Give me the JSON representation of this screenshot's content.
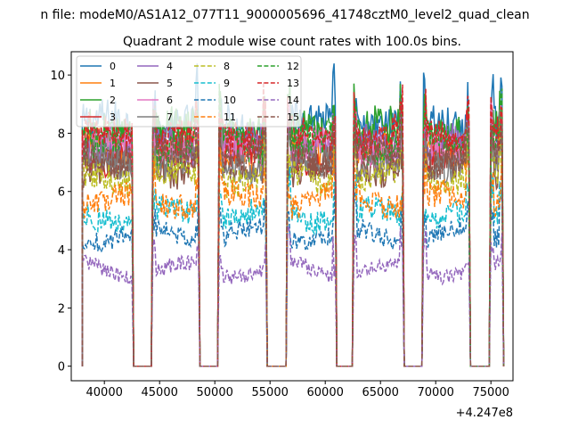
{
  "suptitle": "n file: modeM0/AS1A12_077T11_9000005696_41748cztM0_level2_quad_clean",
  "chart_data": {
    "type": "line",
    "title": "Quadrant 2 module wise count rates with 100.0s bins.",
    "xlabel": "",
    "ylabel": "",
    "x_offset_label": "+4.247e8",
    "xlim": [
      37000,
      77000
    ],
    "ylim": [
      -0.5,
      10.8
    ],
    "xticks": [
      40000,
      45000,
      50000,
      55000,
      60000,
      65000,
      70000,
      75000
    ],
    "xtick_labels": [
      "40000",
      "45000",
      "50000",
      "55000",
      "60000",
      "65000",
      "70000",
      "75000"
    ],
    "yticks": [
      0,
      2,
      4,
      6,
      8,
      10
    ],
    "ytick_labels": [
      "0",
      "2",
      "4",
      "6",
      "8",
      "10"
    ],
    "grid": false,
    "legend_placement": "top-left",
    "legend_columns": 4,
    "on_intervals": [
      [
        38000,
        42500
      ],
      [
        44400,
        48500
      ],
      [
        50400,
        54600
      ],
      [
        56600,
        60900
      ],
      [
        62600,
        67000
      ],
      [
        68900,
        73000
      ],
      [
        75000,
        76000
      ]
    ],
    "gap_level": 0,
    "series": [
      {
        "name": "0",
        "color": "#1f77b4",
        "style": "solid",
        "level": 8.3
      },
      {
        "name": "1",
        "color": "#ff7f0e",
        "style": "solid",
        "level": 7.4
      },
      {
        "name": "2",
        "color": "#2ca02c",
        "style": "solid",
        "level": 8.1
      },
      {
        "name": "3",
        "color": "#d62728",
        "style": "solid",
        "level": 7.3
      },
      {
        "name": "4",
        "color": "#9467bd",
        "style": "solid",
        "level": 7.6
      },
      {
        "name": "5",
        "color": "#8c564b",
        "style": "solid",
        "level": 6.8
      },
      {
        "name": "6",
        "color": "#e377c2",
        "style": "solid",
        "level": 7.5
      },
      {
        "name": "7",
        "color": "#7f7f7f",
        "style": "solid",
        "level": 7.0
      },
      {
        "name": "8",
        "color": "#bcbd22",
        "style": "dashed",
        "level": 6.5
      },
      {
        "name": "9",
        "color": "#17becf",
        "style": "dashed",
        "level": 5.2
      },
      {
        "name": "10",
        "color": "#1f77b4",
        "style": "dashed",
        "level": 4.5
      },
      {
        "name": "11",
        "color": "#ff7f0e",
        "style": "dashed",
        "level": 5.7
      },
      {
        "name": "12",
        "color": "#2ca02c",
        "style": "dashed",
        "level": 7.7
      },
      {
        "name": "13",
        "color": "#d62728",
        "style": "dashed",
        "level": 7.9
      },
      {
        "name": "14",
        "color": "#9467bd",
        "style": "dashed",
        "level": 3.3
      },
      {
        "name": "15",
        "color": "#8c564b",
        "style": "dashed",
        "level": 7.2
      }
    ]
  }
}
